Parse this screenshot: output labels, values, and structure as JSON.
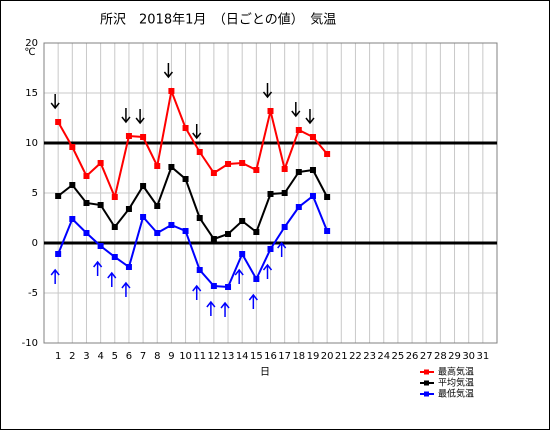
{
  "chart_data": {
    "type": "line",
    "title": "所沢　2018年1月　（日ごとの値）　気温",
    "y_label": "℃",
    "x_label": "日",
    "categories": [
      "1",
      "2",
      "3",
      "4",
      "5",
      "6",
      "7",
      "8",
      "9",
      "10",
      "11",
      "12",
      "13",
      "14",
      "15",
      "16",
      "17",
      "18",
      "19",
      "20",
      "21",
      "22",
      "23",
      "24",
      "25",
      "26",
      "27",
      "28",
      "29",
      "30",
      "31"
    ],
    "series": [
      {
        "name": "最高気温",
        "color": "#ff0000",
        "values": [
          12.1,
          9.6,
          6.7,
          8.0,
          4.6,
          10.7,
          10.6,
          7.7,
          15.2,
          11.5,
          9.1,
          7.0,
          7.9,
          8.0,
          7.3,
          13.2,
          7.4,
          11.3,
          10.6,
          8.9,
          null,
          null,
          null,
          null,
          null,
          null,
          null,
          null,
          null,
          null,
          null
        ]
      },
      {
        "name": "平均気温",
        "color": "#000000",
        "values": [
          4.7,
          5.8,
          4.0,
          3.8,
          1.6,
          3.4,
          5.7,
          3.7,
          7.6,
          6.4,
          2.5,
          0.4,
          0.9,
          2.2,
          1.1,
          4.9,
          5.0,
          7.1,
          7.3,
          4.6,
          null,
          null,
          null,
          null,
          null,
          null,
          null,
          null,
          null,
          null,
          null
        ]
      },
      {
        "name": "最低気温",
        "color": "#0000ff",
        "values": [
          -1.1,
          2.4,
          1.0,
          -0.3,
          -1.4,
          -2.4,
          2.6,
          1.0,
          1.8,
          1.2,
          -2.7,
          -4.3,
          -4.4,
          -1.1,
          -3.6,
          -0.6,
          1.6,
          3.6,
          4.7,
          1.2,
          null,
          null,
          null,
          null,
          null,
          null,
          null,
          null,
          null,
          null,
          null
        ]
      }
    ],
    "ylim": [
      -10,
      20
    ],
    "yticks": [
      -10,
      -5,
      0,
      5,
      10,
      15,
      20
    ],
    "grid": true,
    "reference_lines": [
      0,
      10
    ],
    "down_arrow_days": [
      1,
      6,
      7,
      9,
      11,
      16,
      18,
      19
    ],
    "up_arrow_days": [
      1,
      4,
      5,
      6,
      11,
      12,
      13,
      14,
      15,
      16,
      17
    ],
    "legend": "bottom-right"
  }
}
